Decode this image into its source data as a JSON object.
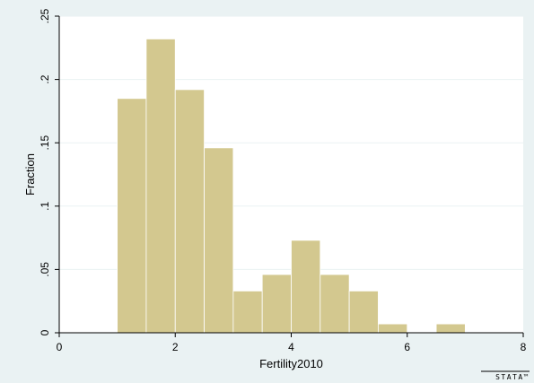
{
  "chart_data": {
    "type": "bar",
    "subtype": "histogram",
    "xlabel": "Fertility2010",
    "ylabel": "Fraction",
    "xlim": [
      0,
      8
    ],
    "ylim": [
      0,
      0.25
    ],
    "xticks": [
      0,
      2,
      4,
      6,
      8
    ],
    "xtick_labels": [
      "0",
      "2",
      "4",
      "6",
      "8"
    ],
    "yticks": [
      0,
      0.05,
      0.1,
      0.15,
      0.2,
      0.25
    ],
    "ytick_labels": [
      "0",
      ".05",
      ".1",
      ".15",
      ".2",
      ".25"
    ],
    "grid": true,
    "bin_width": 0.5,
    "bins": [
      {
        "x0": 1.0,
        "x1": 1.5,
        "value": 0.185
      },
      {
        "x0": 1.5,
        "x1": 2.0,
        "value": 0.232
      },
      {
        "x0": 2.0,
        "x1": 2.5,
        "value": 0.192
      },
      {
        "x0": 2.5,
        "x1": 3.0,
        "value": 0.146
      },
      {
        "x0": 3.0,
        "x1": 3.5,
        "value": 0.033
      },
      {
        "x0": 3.5,
        "x1": 4.0,
        "value": 0.046
      },
      {
        "x0": 4.0,
        "x1": 4.5,
        "value": 0.073
      },
      {
        "x0": 4.5,
        "x1": 5.0,
        "value": 0.046
      },
      {
        "x0": 5.0,
        "x1": 5.5,
        "value": 0.033
      },
      {
        "x0": 5.5,
        "x1": 6.0,
        "value": 0.007
      },
      {
        "x0": 6.0,
        "x1": 6.5,
        "value": 0.0
      },
      {
        "x0": 6.5,
        "x1": 7.0,
        "value": 0.007
      }
    ],
    "colors": {
      "outer_background": "#eaf2f3",
      "plot_background": "#ffffff",
      "bar_fill": "#d3c88f",
      "bar_stroke": "#ffffff",
      "grid": "#eaf2f3",
      "axis": "#000000"
    }
  },
  "footer": {
    "brand": "STATA™"
  }
}
